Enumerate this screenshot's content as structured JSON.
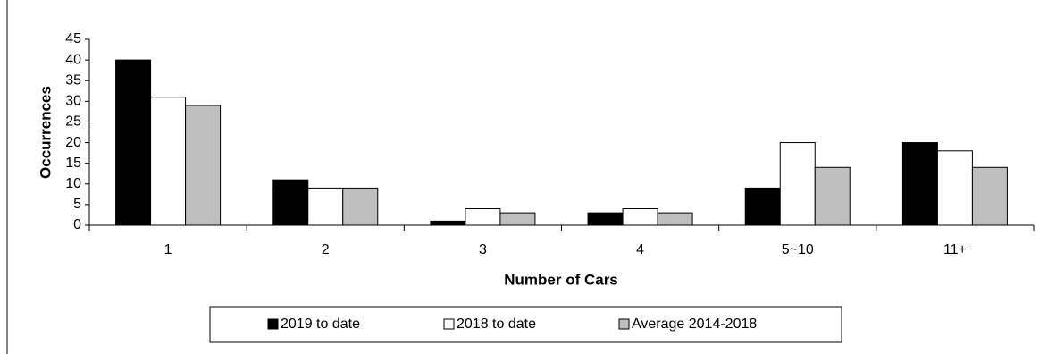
{
  "chart_data": {
    "type": "bar",
    "categories": [
      "1",
      "2",
      "3",
      "4",
      "5~10",
      "11+"
    ],
    "series": [
      {
        "name": "2019 to date",
        "color": "#000000",
        "values": [
          40,
          11,
          1,
          3,
          9,
          20
        ]
      },
      {
        "name": "2018 to date",
        "color": "#ffffff",
        "values": [
          31,
          9,
          4,
          4,
          20,
          18
        ]
      },
      {
        "name": "Average 2014-2018",
        "color": "#bfbfbf",
        "values": [
          29,
          9,
          3,
          3,
          14,
          14
        ]
      }
    ],
    "x_label": "Number of Cars",
    "y_label": "Occurrences",
    "ylim": [
      0,
      45
    ],
    "yticks": [
      0,
      5,
      10,
      15,
      20,
      25,
      30,
      35,
      40,
      45
    ],
    "legend": "bottom"
  }
}
